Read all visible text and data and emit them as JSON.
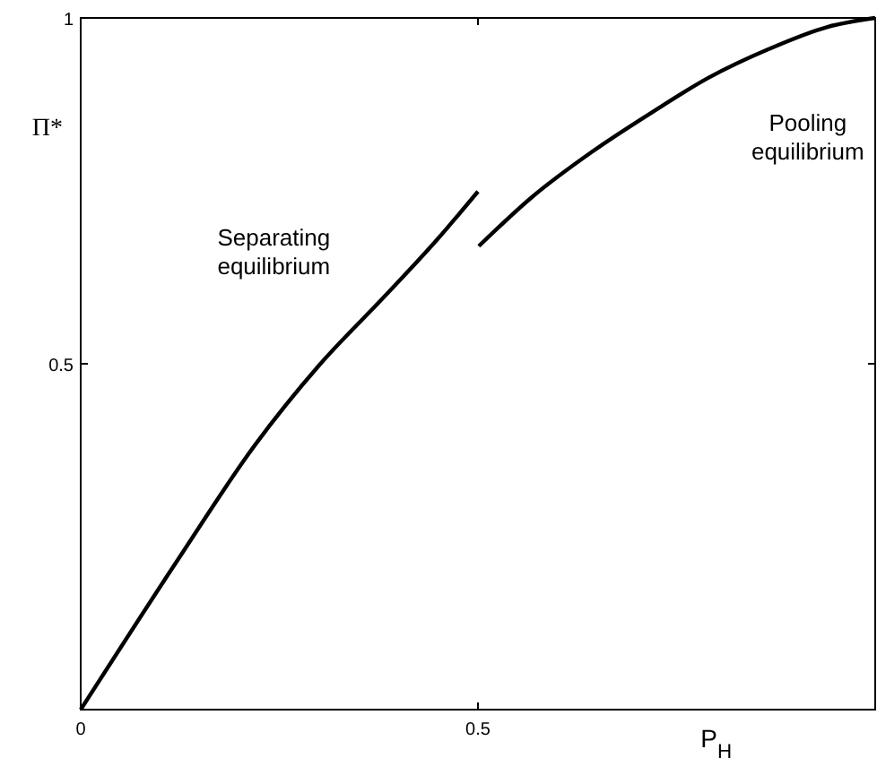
{
  "chart_data": {
    "type": "line",
    "xlabel": "P$_{H}$",
    "ylabel": "Π*",
    "xlim": [
      0,
      1
    ],
    "ylim": [
      0,
      1
    ],
    "xticks": [
      0,
      0.5
    ],
    "yticks": [
      0.5,
      1
    ],
    "grid": false,
    "marker": "none",
    "line_style": "solid",
    "series": [
      {
        "name": "Separating equilibrium",
        "color": "#000000",
        "x": [
          0,
          0.123,
          0.219,
          0.301,
          0.383,
          0.449,
          0.5
        ],
        "values": [
          0,
          0.218,
          0.382,
          0.499,
          0.598,
          0.68,
          0.749
        ]
      },
      {
        "name": "Pooling equilibrium",
        "color": "#000000",
        "x": [
          0.501,
          0.568,
          0.643,
          0.717,
          0.791,
          0.866,
          0.94,
          1
        ],
        "values": [
          0.67,
          0.741,
          0.806,
          0.862,
          0.914,
          0.955,
          0.987,
          1
        ]
      }
    ]
  }
}
